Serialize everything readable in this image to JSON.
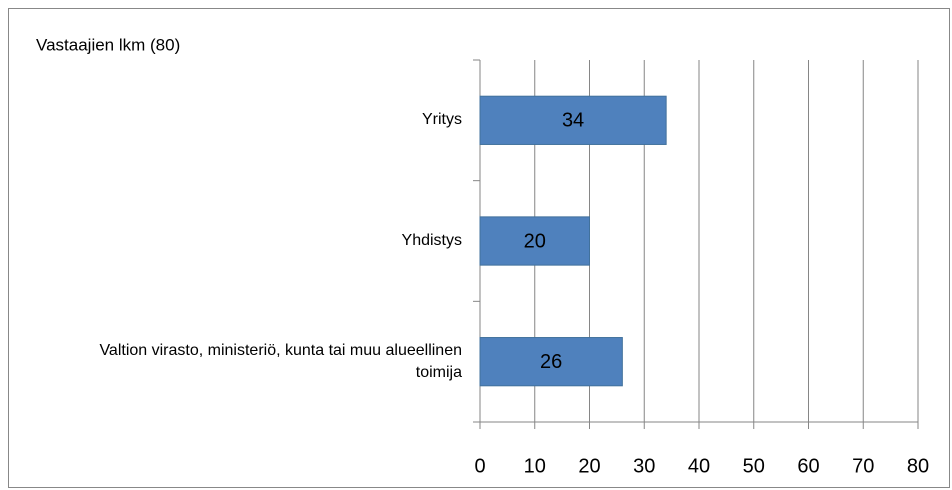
{
  "chart_data": {
    "type": "bar",
    "orientation": "horizontal",
    "title": "Vastaajien lkm (80)",
    "categories": [
      "Yritys",
      "Yhdistys",
      "Valtion virasto, ministeriö, kunta tai muu alueellinen toimija"
    ],
    "values": [
      34,
      20,
      26
    ],
    "color": "#4f81bd",
    "xlim": [
      0,
      80
    ],
    "xticks": [
      0,
      10,
      20,
      30,
      40,
      50,
      60,
      70,
      80
    ],
    "grid": true
  }
}
